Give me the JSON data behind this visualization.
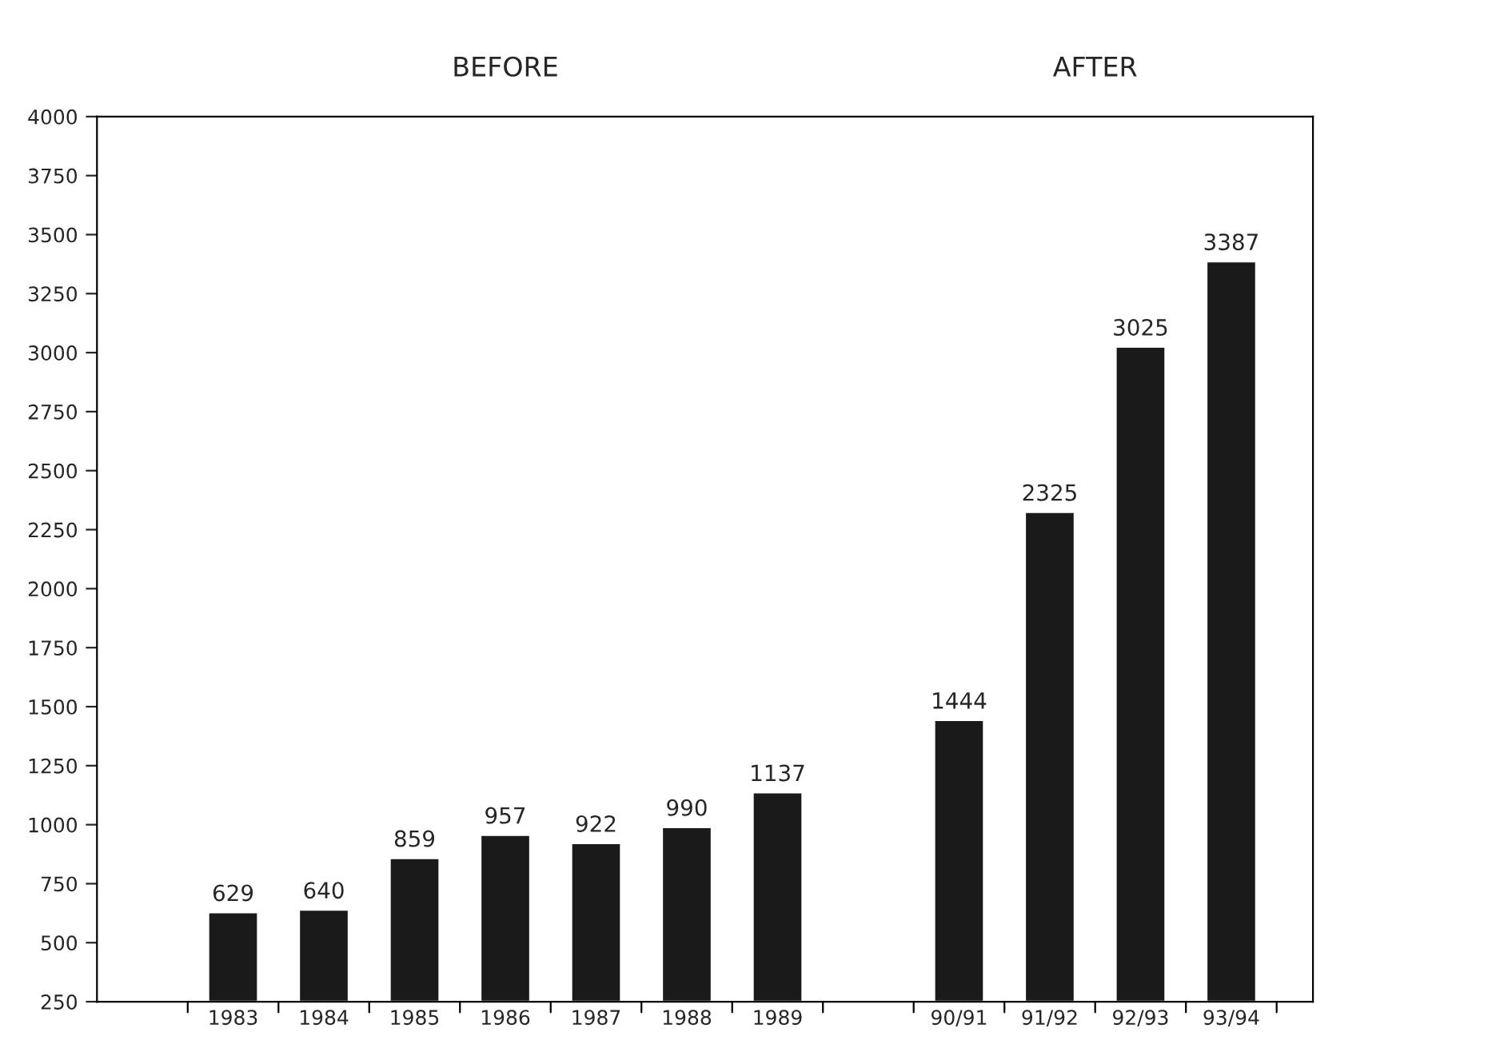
{
  "chart_data": {
    "type": "bar",
    "categories": [
      "1983",
      "1984",
      "1985",
      "1986",
      "1987",
      "1988",
      "1989",
      null,
      "90/91",
      "91/92",
      "92/93",
      "93/94"
    ],
    "values": [
      629,
      640,
      859,
      957,
      922,
      990,
      1137,
      null,
      1444,
      2325,
      3025,
      3387
    ],
    "color": "#1a1a1a",
    "ylim": [
      250,
      4000
    ],
    "yticks": [
      250,
      500,
      750,
      1000,
      1250,
      1500,
      1750,
      2000,
      2250,
      2500,
      2750,
      3000,
      3250,
      3500,
      3750,
      4000
    ],
    "data_labels": true,
    "grid": false,
    "annotations": [
      "BEFORE",
      "AFTER"
    ]
  }
}
